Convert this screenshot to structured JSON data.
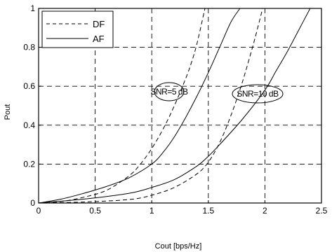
{
  "chart_data": {
    "type": "line",
    "xlabel": "Cout [bps/Hz]",
    "ylabel": "Pout",
    "xlim": [
      0,
      2.5
    ],
    "ylim": [
      0,
      1
    ],
    "xticks": [
      "0",
      "0.5",
      "1",
      "1.5",
      "2",
      "2.5"
    ],
    "yticks": [
      "0",
      "0.2",
      "0.4",
      "0.6",
      "0.8",
      "1"
    ],
    "grid": true,
    "legend_position": "top-left",
    "legend": [
      {
        "label": "DF",
        "style": "dashed"
      },
      {
        "label": "AF",
        "style": "solid"
      }
    ],
    "annotations": [
      {
        "text": "SNR=5 dB",
        "x": 1.12,
        "y": 0.625
      },
      {
        "text": "SNR=10 dB",
        "x": 1.75,
        "y": 0.61
      }
    ],
    "series": [
      {
        "style": "dashed",
        "group": "SNR=5 dB",
        "x": [
          0,
          0.2,
          0.4,
          0.6,
          0.8,
          0.9,
          1.0,
          1.1,
          1.2,
          1.3,
          1.35,
          1.4,
          1.47
        ],
        "y": [
          0,
          0.008,
          0.03,
          0.065,
          0.14,
          0.2,
          0.28,
          0.38,
          0.5,
          0.64,
          0.72,
          0.82,
          1.0
        ]
      },
      {
        "style": "solid",
        "group": "SNR=5 dB",
        "x": [
          0,
          0.2,
          0.4,
          0.6,
          0.8,
          1.0,
          1.1,
          1.2,
          1.3,
          1.4,
          1.5,
          1.6,
          1.7,
          1.78
        ],
        "y": [
          0,
          0.02,
          0.05,
          0.085,
          0.13,
          0.2,
          0.26,
          0.34,
          0.44,
          0.55,
          0.67,
          0.8,
          0.93,
          1.0
        ]
      },
      {
        "style": "dashed",
        "group": "SNR=10 dB",
        "x": [
          0,
          0.4,
          0.8,
          1.0,
          1.2,
          1.4,
          1.5,
          1.6,
          1.7,
          1.8,
          1.9,
          1.98
        ],
        "y": [
          0,
          0.005,
          0.018,
          0.04,
          0.08,
          0.15,
          0.21,
          0.31,
          0.45,
          0.62,
          0.82,
          1.0
        ]
      },
      {
        "style": "solid",
        "group": "SNR=10 dB",
        "x": [
          0,
          0.4,
          0.8,
          1.0,
          1.2,
          1.4,
          1.5,
          1.6,
          1.8,
          2.0,
          2.1,
          2.2,
          2.3,
          2.4
        ],
        "y": [
          0,
          0.02,
          0.05,
          0.08,
          0.12,
          0.19,
          0.24,
          0.3,
          0.43,
          0.58,
          0.68,
          0.78,
          0.89,
          1.0
        ]
      }
    ]
  }
}
